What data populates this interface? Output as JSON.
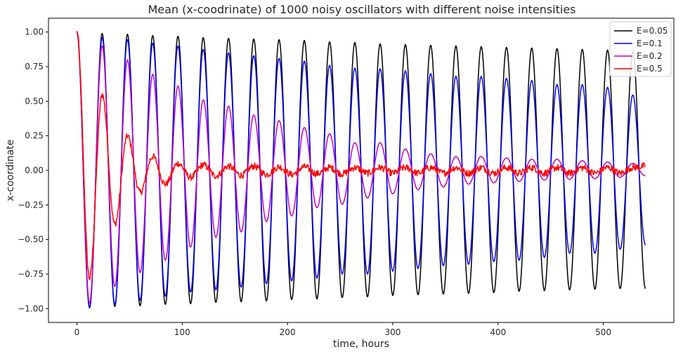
{
  "chart_data": {
    "type": "line",
    "title": "Mean (x-coodrinate) of 1000 noisy oscillators with different noise intensities",
    "xlabel": "time, hours",
    "ylabel": "x-coordinate",
    "xlim": [
      -27,
      567
    ],
    "ylim": [
      -1.1,
      1.1
    ],
    "xticks": [
      0,
      100,
      200,
      300,
      400,
      500
    ],
    "yticks": [
      -1.0,
      -0.75,
      -0.5,
      -0.25,
      0.0,
      0.25,
      0.5,
      0.75,
      1.0
    ],
    "xtick_labels": [
      "0",
      "100",
      "200",
      "300",
      "400",
      "500"
    ],
    "ytick_labels": [
      "−1.00",
      "−0.75",
      "−0.50",
      "−0.25",
      "0.00",
      "0.25",
      "0.50",
      "0.75",
      "1.00"
    ],
    "grid": false,
    "legend_position": "top-right",
    "x_range": [
      0,
      540
    ],
    "period": 24,
    "series": [
      {
        "name": "E=0.05",
        "color": "#000000",
        "peaks": [
          [
            0,
            1.0
          ],
          [
            24,
            0.99
          ],
          [
            48,
            0.985
          ],
          [
            72,
            0.975
          ],
          [
            96,
            0.97
          ],
          [
            120,
            0.96
          ],
          [
            144,
            0.955
          ],
          [
            168,
            0.95
          ],
          [
            192,
            0.945
          ],
          [
            216,
            0.94
          ],
          [
            240,
            0.93
          ],
          [
            264,
            0.925
          ],
          [
            288,
            0.915
          ],
          [
            312,
            0.91
          ],
          [
            336,
            0.905
          ],
          [
            360,
            0.9
          ],
          [
            384,
            0.895
          ],
          [
            408,
            0.89
          ],
          [
            432,
            0.885
          ],
          [
            456,
            0.88
          ],
          [
            480,
            0.875
          ],
          [
            504,
            0.87
          ],
          [
            528,
            0.86
          ]
        ],
        "troughs": [
          [
            12,
            -0.995
          ],
          [
            36,
            -0.985
          ],
          [
            60,
            -0.98
          ],
          [
            84,
            -0.97
          ],
          [
            108,
            -0.965
          ],
          [
            132,
            -0.955
          ],
          [
            156,
            -0.95
          ],
          [
            180,
            -0.945
          ],
          [
            204,
            -0.935
          ],
          [
            228,
            -0.93
          ],
          [
            252,
            -0.92
          ],
          [
            276,
            -0.915
          ],
          [
            300,
            -0.905
          ],
          [
            324,
            -0.9
          ],
          [
            348,
            -0.895
          ],
          [
            372,
            -0.89
          ],
          [
            396,
            -0.885
          ],
          [
            420,
            -0.875
          ],
          [
            444,
            -0.87
          ],
          [
            468,
            -0.865
          ],
          [
            492,
            -0.86
          ],
          [
            516,
            -0.855
          ],
          [
            540,
            -0.855
          ]
        ]
      },
      {
        "name": "E=0.1",
        "color": "#0000ff",
        "peaks": [
          [
            0,
            1.0
          ],
          [
            24,
            0.96
          ],
          [
            48,
            0.945
          ],
          [
            72,
            0.92
          ],
          [
            96,
            0.9
          ],
          [
            120,
            0.875
          ],
          [
            144,
            0.85
          ],
          [
            168,
            0.83
          ],
          [
            192,
            0.81
          ],
          [
            216,
            0.79
          ],
          [
            240,
            0.76
          ],
          [
            264,
            0.74
          ],
          [
            288,
            0.735
          ],
          [
            312,
            0.72
          ],
          [
            336,
            0.7
          ],
          [
            360,
            0.68
          ],
          [
            384,
            0.68
          ],
          [
            408,
            0.665
          ],
          [
            432,
            0.65
          ],
          [
            456,
            0.62
          ],
          [
            480,
            0.62
          ],
          [
            504,
            0.6
          ],
          [
            528,
            0.545
          ]
        ],
        "troughs": [
          [
            12,
            -0.99
          ],
          [
            36,
            -0.97
          ],
          [
            60,
            -0.94
          ],
          [
            84,
            -0.91
          ],
          [
            108,
            -0.88
          ],
          [
            132,
            -0.865
          ],
          [
            156,
            -0.845
          ],
          [
            180,
            -0.82
          ],
          [
            204,
            -0.8
          ],
          [
            228,
            -0.78
          ],
          [
            252,
            -0.75
          ],
          [
            276,
            -0.75
          ],
          [
            300,
            -0.73
          ],
          [
            324,
            -0.71
          ],
          [
            348,
            -0.69
          ],
          [
            372,
            -0.68
          ],
          [
            396,
            -0.66
          ],
          [
            420,
            -0.65
          ],
          [
            444,
            -0.63
          ],
          [
            468,
            -0.6
          ],
          [
            492,
            -0.6
          ],
          [
            516,
            -0.57
          ],
          [
            540,
            -0.54
          ]
        ]
      },
      {
        "name": "E=0.2",
        "color": "#bf00bf",
        "peaks": [
          [
            0,
            1.0
          ],
          [
            24,
            0.9
          ],
          [
            48,
            0.8
          ],
          [
            72,
            0.695
          ],
          [
            96,
            0.61
          ],
          [
            120,
            0.51
          ],
          [
            144,
            0.465
          ],
          [
            168,
            0.4
          ],
          [
            192,
            0.36
          ],
          [
            216,
            0.31
          ],
          [
            240,
            0.265
          ],
          [
            264,
            0.2
          ],
          [
            288,
            0.2
          ],
          [
            312,
            0.155
          ],
          [
            336,
            0.12
          ],
          [
            360,
            0.1
          ],
          [
            384,
            0.1
          ],
          [
            408,
            0.09
          ],
          [
            432,
            0.08
          ],
          [
            456,
            0.08
          ],
          [
            480,
            0.07
          ],
          [
            504,
            0.06
          ],
          [
            528,
            0.05
          ]
        ],
        "troughs": [
          [
            12,
            -0.96
          ],
          [
            36,
            -0.84
          ],
          [
            60,
            -0.74
          ],
          [
            84,
            -0.65
          ],
          [
            108,
            -0.555
          ],
          [
            132,
            -0.485
          ],
          [
            156,
            -0.445
          ],
          [
            180,
            -0.37
          ],
          [
            204,
            -0.33
          ],
          [
            228,
            -0.27
          ],
          [
            252,
            -0.245
          ],
          [
            276,
            -0.2
          ],
          [
            300,
            -0.17
          ],
          [
            324,
            -0.14
          ],
          [
            348,
            -0.12
          ],
          [
            372,
            -0.1
          ],
          [
            396,
            -0.09
          ],
          [
            420,
            -0.08
          ],
          [
            444,
            -0.07
          ],
          [
            468,
            -0.065
          ],
          [
            492,
            -0.06
          ],
          [
            516,
            -0.05
          ],
          [
            540,
            -0.04
          ]
        ]
      },
      {
        "name": "E=0.5",
        "color": "#ff0000",
        "peaks": [
          [
            0,
            1.0
          ],
          [
            24,
            0.55
          ],
          [
            48,
            0.25
          ],
          [
            72,
            0.1
          ],
          [
            96,
            0.05
          ],
          [
            120,
            0.04
          ],
          [
            144,
            0.03
          ],
          [
            168,
            0.03
          ],
          [
            192,
            0.025
          ],
          [
            216,
            0.025
          ],
          [
            240,
            0.02
          ],
          [
            264,
            0.02
          ],
          [
            288,
            0.02
          ],
          [
            312,
            0.02
          ],
          [
            336,
            0.02
          ],
          [
            360,
            0.02
          ],
          [
            384,
            0.02
          ],
          [
            408,
            0.02
          ],
          [
            432,
            0.02
          ],
          [
            456,
            0.02
          ],
          [
            480,
            0.02
          ],
          [
            504,
            0.02
          ],
          [
            528,
            0.02
          ]
        ],
        "troughs": [
          [
            12,
            -0.78
          ],
          [
            36,
            -0.39
          ],
          [
            60,
            -0.16
          ],
          [
            84,
            -0.1
          ],
          [
            108,
            -0.05
          ],
          [
            132,
            -0.04
          ],
          [
            156,
            -0.035
          ],
          [
            180,
            -0.03
          ],
          [
            204,
            -0.03
          ],
          [
            228,
            -0.025
          ],
          [
            252,
            -0.025
          ],
          [
            276,
            -0.02
          ],
          [
            300,
            -0.02
          ],
          [
            324,
            -0.02
          ],
          [
            348,
            -0.02
          ],
          [
            372,
            -0.02
          ],
          [
            396,
            -0.02
          ],
          [
            420,
            -0.02
          ],
          [
            444,
            -0.02
          ],
          [
            468,
            -0.02
          ],
          [
            492,
            -0.02
          ],
          [
            516,
            -0.02
          ],
          [
            540,
            0.03
          ]
        ],
        "noise": 0.025
      }
    ]
  }
}
